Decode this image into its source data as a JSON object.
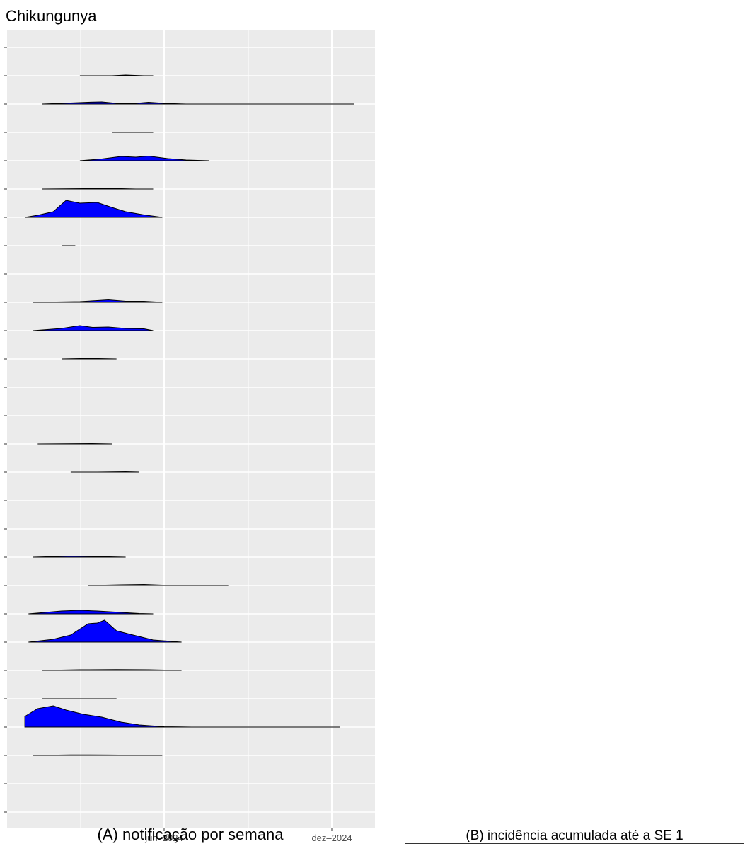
{
  "page": {
    "title": "Chikungunya",
    "caption_a": "(A) notificação por semana",
    "caption_b": "(B) incidência acumulada até a SE 1"
  },
  "chart_data": {
    "type": "area",
    "subtype": "ridgeline",
    "title": "",
    "xlabel": "",
    "ylabel": "",
    "x_ticks": [
      "jun–2024",
      "dez–2024"
    ],
    "x_range": [
      "2024-01-01",
      "2025-01-31"
    ],
    "grid": true,
    "fill_color": "#0000ff",
    "panel_bg": "#ebebeb",
    "ridge_count": 28,
    "ridges": [
      {
        "index": 1,
        "points": []
      },
      {
        "index": 2,
        "points": [
          [
            "2024-03-01",
            0
          ],
          [
            "2024-03-20",
            0
          ],
          [
            "2024-04-05",
            0
          ],
          [
            "2024-04-20",
            0.1
          ],
          [
            "2024-05-10",
            0
          ],
          [
            "2024-05-20",
            0
          ]
        ]
      },
      {
        "index": 3,
        "points": [
          [
            "2024-01-20",
            0
          ],
          [
            "2024-02-20",
            0.15
          ],
          [
            "2024-03-10",
            0.25
          ],
          [
            "2024-03-25",
            0.3
          ],
          [
            "2024-04-10",
            0.1
          ],
          [
            "2024-05-01",
            0.1
          ],
          [
            "2024-05-15",
            0.25
          ],
          [
            "2024-06-01",
            0.1
          ],
          [
            "2024-06-25",
            0
          ],
          [
            "2024-07-25",
            0
          ],
          [
            "2024-12-05",
            0
          ],
          [
            "2024-12-25",
            0
          ]
        ]
      },
      {
        "index": 4,
        "points": [
          [
            "2024-04-05",
            0
          ],
          [
            "2024-05-20",
            0
          ]
        ]
      },
      {
        "index": 5,
        "points": [
          [
            "2024-03-01",
            0
          ],
          [
            "2024-03-25",
            0.25
          ],
          [
            "2024-04-15",
            0.6
          ],
          [
            "2024-05-01",
            0.5
          ],
          [
            "2024-05-15",
            0.65
          ],
          [
            "2024-06-05",
            0.3
          ],
          [
            "2024-06-25",
            0.1
          ],
          [
            "2024-07-20",
            0
          ]
        ]
      },
      {
        "index": 6,
        "points": [
          [
            "2024-01-20",
            0
          ],
          [
            "2024-03-05",
            0.05
          ],
          [
            "2024-04-01",
            0.1
          ],
          [
            "2024-05-01",
            0
          ],
          [
            "2024-05-20",
            0
          ]
        ]
      },
      {
        "index": 7,
        "points": [
          [
            "2024-01-01",
            0
          ],
          [
            "2024-01-15",
            0.3
          ],
          [
            "2024-02-01",
            0.8
          ],
          [
            "2024-02-15",
            2.4
          ],
          [
            "2024-03-01",
            2.0
          ],
          [
            "2024-03-20",
            2.1
          ],
          [
            "2024-04-05",
            1.4
          ],
          [
            "2024-04-20",
            0.8
          ],
          [
            "2024-05-10",
            0.35
          ],
          [
            "2024-05-30",
            0
          ]
        ]
      },
      {
        "index": 8,
        "points": [
          [
            "2024-02-10",
            0
          ],
          [
            "2024-02-25",
            0
          ]
        ]
      },
      {
        "index": 9,
        "points": []
      },
      {
        "index": 10,
        "points": [
          [
            "2024-01-10",
            0
          ],
          [
            "2024-03-01",
            0.1
          ],
          [
            "2024-03-20",
            0.25
          ],
          [
            "2024-04-01",
            0.35
          ],
          [
            "2024-04-20",
            0.15
          ],
          [
            "2024-05-10",
            0.15
          ],
          [
            "2024-05-30",
            0
          ]
        ]
      },
      {
        "index": 11,
        "points": [
          [
            "2024-01-10",
            0
          ],
          [
            "2024-02-10",
            0.3
          ],
          [
            "2024-03-01",
            0.7
          ],
          [
            "2024-03-15",
            0.45
          ],
          [
            "2024-04-01",
            0.5
          ],
          [
            "2024-04-20",
            0.3
          ],
          [
            "2024-05-10",
            0.25
          ],
          [
            "2024-05-20",
            0
          ]
        ]
      },
      {
        "index": 12,
        "points": [
          [
            "2024-02-10",
            0
          ],
          [
            "2024-03-10",
            0.08
          ],
          [
            "2024-04-10",
            0
          ]
        ]
      },
      {
        "index": 13,
        "points": []
      },
      {
        "index": 14,
        "points": []
      },
      {
        "index": 15,
        "points": [
          [
            "2024-01-15",
            0
          ],
          [
            "2024-03-15",
            0.05
          ],
          [
            "2024-04-05",
            0
          ]
        ]
      },
      {
        "index": 16,
        "points": [
          [
            "2024-02-20",
            0
          ],
          [
            "2024-02-25",
            0
          ],
          [
            "2024-03-20",
            0
          ],
          [
            "2024-04-20",
            0.05
          ],
          [
            "2024-05-05",
            0
          ]
        ]
      },
      {
        "index": 17,
        "points": []
      },
      {
        "index": 18,
        "points": []
      },
      {
        "index": 19,
        "points": [
          [
            "2024-01-10",
            0
          ],
          [
            "2024-02-20",
            0.15
          ],
          [
            "2024-03-15",
            0.1
          ],
          [
            "2024-04-20",
            0
          ]
        ]
      },
      {
        "index": 20,
        "points": [
          [
            "2024-03-10",
            0
          ],
          [
            "2024-04-15",
            0.1
          ],
          [
            "2024-05-10",
            0.15
          ],
          [
            "2024-05-30",
            0.05
          ],
          [
            "2024-06-30",
            0
          ],
          [
            "2024-07-25",
            0
          ],
          [
            "2024-08-10",
            0
          ]
        ]
      },
      {
        "index": 21,
        "points": [
          [
            "2024-01-05",
            0
          ],
          [
            "2024-02-10",
            0.4
          ],
          [
            "2024-03-01",
            0.5
          ],
          [
            "2024-03-20",
            0.4
          ],
          [
            "2024-04-15",
            0.2
          ],
          [
            "2024-05-05",
            0.05
          ],
          [
            "2024-05-20",
            0
          ]
        ]
      },
      {
        "index": 22,
        "points": [
          [
            "2024-01-05",
            0
          ],
          [
            "2024-02-01",
            0.4
          ],
          [
            "2024-02-20",
            1.0
          ],
          [
            "2024-03-10",
            2.6
          ],
          [
            "2024-03-20",
            2.7
          ],
          [
            "2024-03-28",
            3.1
          ],
          [
            "2024-04-10",
            1.6
          ],
          [
            "2024-04-25",
            1.1
          ],
          [
            "2024-05-20",
            0.3
          ],
          [
            "2024-06-20",
            0
          ]
        ]
      },
      {
        "index": 23,
        "points": [
          [
            "2024-01-20",
            0
          ],
          [
            "2024-03-01",
            0.1
          ],
          [
            "2024-04-10",
            0.12
          ],
          [
            "2024-05-15",
            0.1
          ],
          [
            "2024-06-20",
            0
          ]
        ]
      },
      {
        "index": 24,
        "points": [
          [
            "2024-01-20",
            0
          ],
          [
            "2024-02-20",
            0
          ],
          [
            "2024-04-10",
            0
          ]
        ]
      },
      {
        "index": 25,
        "points": [
          [
            "2024-01-01",
            1.5
          ],
          [
            "2024-01-15",
            2.6
          ],
          [
            "2024-02-01",
            3.0
          ],
          [
            "2024-02-15",
            2.4
          ],
          [
            "2024-03-05",
            1.8
          ],
          [
            "2024-03-25",
            1.4
          ],
          [
            "2024-04-15",
            0.7
          ],
          [
            "2024-05-05",
            0.3
          ],
          [
            "2024-06-01",
            0.05
          ],
          [
            "2024-07-01",
            0
          ],
          [
            "2024-11-20",
            0
          ],
          [
            "2024-12-10",
            0
          ]
        ]
      },
      {
        "index": 26,
        "points": [
          [
            "2024-01-10",
            0
          ],
          [
            "2024-02-20",
            0.08
          ],
          [
            "2024-04-01",
            0.06
          ],
          [
            "2024-05-30",
            0
          ]
        ]
      },
      {
        "index": 27,
        "points": []
      },
      {
        "index": 28,
        "points": []
      }
    ]
  }
}
